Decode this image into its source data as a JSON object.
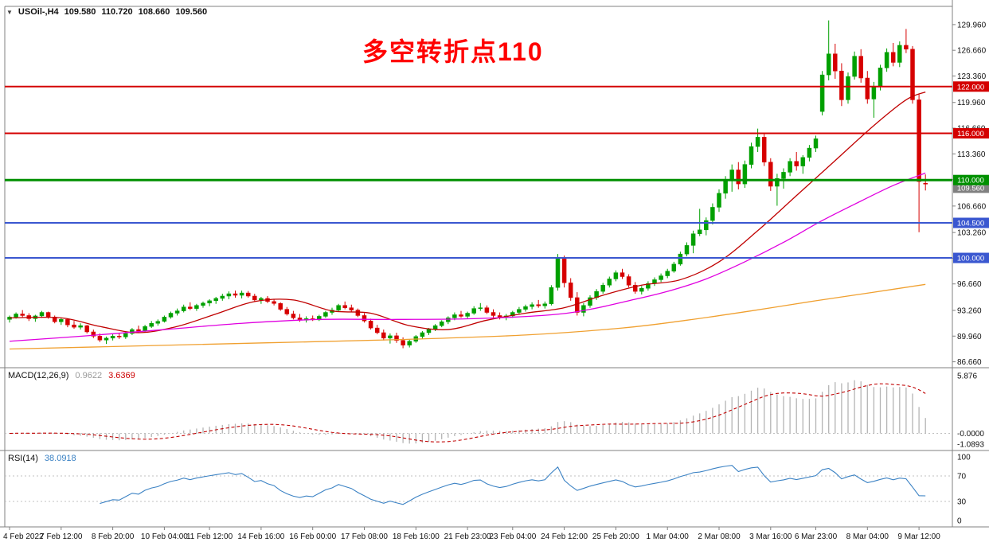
{
  "header": {
    "collapse_icon": "▼",
    "symbol": "USOil-,H4",
    "open": "109.580",
    "high": "110.720",
    "low": "108.660",
    "close": "109.560"
  },
  "annotation": {
    "text": "多空转折点110"
  },
  "colors": {
    "bull": "#00a000",
    "bear": "#d60000",
    "ma_fast": "#c00000",
    "ma_mid": "#e000e0",
    "ma_slow": "#f0a030",
    "macd_bar": "#b4b4b4",
    "macd_signal": "#c00000",
    "rsi_line": "#3b82c4",
    "level_red": "#d40000",
    "level_green": "#009000",
    "level_blue": "#3a57d0",
    "frame": "#808080",
    "text": "#111111",
    "badge_current": "#808080"
  },
  "main_chart": {
    "ylim": [
      85.9,
      132.3
    ],
    "price_ticks": [
      "129.960",
      "126.660",
      "123.360",
      "119.960",
      "116.660",
      "113.360",
      "110.060",
      "106.660",
      "103.260",
      "99.960",
      "96.660",
      "93.260",
      "89.960",
      "86.660"
    ],
    "hlines": [
      {
        "price": 122.0,
        "label": "122.000",
        "color_key": "level_red",
        "width": 2
      },
      {
        "price": 116.0,
        "label": "116.000",
        "color_key": "level_red",
        "width": 2
      },
      {
        "price": 110.0,
        "label": "110.000",
        "color_key": "level_green",
        "width": 3
      },
      {
        "price": 104.5,
        "label": "104.500",
        "color_key": "level_blue",
        "width": 2
      },
      {
        "price": 100.0,
        "label": "100.000",
        "color_key": "level_blue",
        "width": 2
      }
    ],
    "current_price": {
      "value": 109.56,
      "label": "109.560"
    }
  },
  "chart_data": {
    "type": "candlestick",
    "symbol": "USOil",
    "timeframe": "H4",
    "candles": [
      [
        92.1,
        92.6,
        91.7,
        92.4
      ],
      [
        92.4,
        93.0,
        92.2,
        92.8
      ],
      [
        92.8,
        93.3,
        92.4,
        92.6
      ],
      [
        92.6,
        92.9,
        91.9,
        92.2
      ],
      [
        92.2,
        92.7,
        91.8,
        92.55
      ],
      [
        92.55,
        93.2,
        92.3,
        93.0
      ],
      [
        93.0,
        93.1,
        92.2,
        92.4
      ],
      [
        92.4,
        92.6,
        91.6,
        91.8
      ],
      [
        91.8,
        92.3,
        91.4,
        92.1
      ],
      [
        92.1,
        92.2,
        91.1,
        91.4
      ],
      [
        91.4,
        91.9,
        90.9,
        91.1
      ],
      [
        91.1,
        91.6,
        90.8,
        91.3
      ],
      [
        91.3,
        91.4,
        90.3,
        90.5
      ],
      [
        90.5,
        90.8,
        89.7,
        89.95
      ],
      [
        89.95,
        90.3,
        89.2,
        89.45
      ],
      [
        89.45,
        89.9,
        88.95,
        89.7
      ],
      [
        89.7,
        90.2,
        89.4,
        89.95
      ],
      [
        89.95,
        90.4,
        89.6,
        89.85
      ],
      [
        89.85,
        90.5,
        89.6,
        90.3
      ],
      [
        90.3,
        91.0,
        90.1,
        90.8
      ],
      [
        90.8,
        91.3,
        90.4,
        90.6
      ],
      [
        90.6,
        91.4,
        90.5,
        91.2
      ],
      [
        91.2,
        91.9,
        91.0,
        91.6
      ],
      [
        91.6,
        92.1,
        91.3,
        91.85
      ],
      [
        91.85,
        92.6,
        91.7,
        92.4
      ],
      [
        92.4,
        93.1,
        92.2,
        92.9
      ],
      [
        92.9,
        93.5,
        92.6,
        93.2
      ],
      [
        93.2,
        94.0,
        93.0,
        93.7
      ],
      [
        93.7,
        94.3,
        93.3,
        93.5
      ],
      [
        93.5,
        94.1,
        93.2,
        93.9
      ],
      [
        93.9,
        94.4,
        93.6,
        94.2
      ],
      [
        94.2,
        94.7,
        93.8,
        94.5
      ],
      [
        94.5,
        95.0,
        94.1,
        94.8
      ],
      [
        94.8,
        95.4,
        94.5,
        95.1
      ],
      [
        95.1,
        95.7,
        94.7,
        95.4
      ],
      [
        95.4,
        95.8,
        94.9,
        95.2
      ],
      [
        95.2,
        95.8,
        94.8,
        95.5
      ],
      [
        95.5,
        95.75,
        94.9,
        95.1
      ],
      [
        95.1,
        95.4,
        94.4,
        94.6
      ],
      [
        94.6,
        95.0,
        94.1,
        94.8
      ],
      [
        94.8,
        95.1,
        94.2,
        94.4
      ],
      [
        94.4,
        94.7,
        93.9,
        94.15
      ],
      [
        94.15,
        94.3,
        93.2,
        93.4
      ],
      [
        93.4,
        93.7,
        92.6,
        92.8
      ],
      [
        92.8,
        93.2,
        92.1,
        92.3
      ],
      [
        92.3,
        92.8,
        91.8,
        92.0
      ],
      [
        92.0,
        92.5,
        91.7,
        92.2
      ],
      [
        92.2,
        92.6,
        91.9,
        92.05
      ],
      [
        92.05,
        92.7,
        91.9,
        92.5
      ],
      [
        92.5,
        93.2,
        92.3,
        93.0
      ],
      [
        93.0,
        93.6,
        92.7,
        93.3
      ],
      [
        93.3,
        94.1,
        93.1,
        93.9
      ],
      [
        93.9,
        94.4,
        93.4,
        93.6
      ],
      [
        93.6,
        94.0,
        93.1,
        93.3
      ],
      [
        93.3,
        93.5,
        92.4,
        92.6
      ],
      [
        92.6,
        92.9,
        91.7,
        91.9
      ],
      [
        91.9,
        92.2,
        90.8,
        91.0
      ],
      [
        91.0,
        91.4,
        90.2,
        90.4
      ],
      [
        90.4,
        90.8,
        89.4,
        89.7
      ],
      [
        89.7,
        90.3,
        89.0,
        90.0
      ],
      [
        90.0,
        90.4,
        89.1,
        89.4
      ],
      [
        89.4,
        89.8,
        88.4,
        88.8
      ],
      [
        88.8,
        89.5,
        88.5,
        89.3
      ],
      [
        89.3,
        90.1,
        89.1,
        89.9
      ],
      [
        89.9,
        90.6,
        89.6,
        90.4
      ],
      [
        90.4,
        91.0,
        90.1,
        90.85
      ],
      [
        90.85,
        91.5,
        90.6,
        91.3
      ],
      [
        91.3,
        92.0,
        91.1,
        91.8
      ],
      [
        91.8,
        92.5,
        91.5,
        92.3
      ],
      [
        92.3,
        93.0,
        92.0,
        92.7
      ],
      [
        92.7,
        93.2,
        92.3,
        92.5
      ],
      [
        92.5,
        93.1,
        92.2,
        92.9
      ],
      [
        92.9,
        93.8,
        92.7,
        93.5
      ],
      [
        93.5,
        94.2,
        93.2,
        93.6
      ],
      [
        93.6,
        93.9,
        92.8,
        93.0
      ],
      [
        93.0,
        93.4,
        92.3,
        92.6
      ],
      [
        92.6,
        93.0,
        92.1,
        92.35
      ],
      [
        92.35,
        92.8,
        92.0,
        92.55
      ],
      [
        92.55,
        93.2,
        92.3,
        93.0
      ],
      [
        93.0,
        93.7,
        92.8,
        93.4
      ],
      [
        93.4,
        94.0,
        93.1,
        93.75
      ],
      [
        93.75,
        94.3,
        93.4,
        94.0
      ],
      [
        94.0,
        94.6,
        93.6,
        93.85
      ],
      [
        93.85,
        94.4,
        93.5,
        94.1
      ],
      [
        94.1,
        96.5,
        93.9,
        96.2
      ],
      [
        96.2,
        100.5,
        95.8,
        99.9
      ],
      [
        99.9,
        100.3,
        96.2,
        96.8
      ],
      [
        96.8,
        97.4,
        94.5,
        94.9
      ],
      [
        94.9,
        95.6,
        92.6,
        93.0
      ],
      [
        93.0,
        94.2,
        92.5,
        93.9
      ],
      [
        93.9,
        95.2,
        93.6,
        94.9
      ],
      [
        94.9,
        96.0,
        94.6,
        95.7
      ],
      [
        95.7,
        96.8,
        95.4,
        96.5
      ],
      [
        96.5,
        97.6,
        96.2,
        97.3
      ],
      [
        97.3,
        98.4,
        97.0,
        98.1
      ],
      [
        98.1,
        98.6,
        97.3,
        97.6
      ],
      [
        97.6,
        97.9,
        96.2,
        96.5
      ],
      [
        96.5,
        96.9,
        95.4,
        95.7
      ],
      [
        95.7,
        96.4,
        95.3,
        96.1
      ],
      [
        96.1,
        97.0,
        95.8,
        96.7
      ],
      [
        96.7,
        97.5,
        96.4,
        97.2
      ],
      [
        97.2,
        98.0,
        96.9,
        97.7
      ],
      [
        97.7,
        98.6,
        97.4,
        98.3
      ],
      [
        98.3,
        99.5,
        98.1,
        99.2
      ],
      [
        99.2,
        100.8,
        99.0,
        100.5
      ],
      [
        100.5,
        102.0,
        100.2,
        101.6
      ],
      [
        101.6,
        103.5,
        100.6,
        103.1
      ],
      [
        103.1,
        106.3,
        102.8,
        103.6
      ],
      [
        103.6,
        105.2,
        102.9,
        104.8
      ],
      [
        104.8,
        107.0,
        104.3,
        106.5
      ],
      [
        106.5,
        108.8,
        105.9,
        108.3
      ],
      [
        108.3,
        110.5,
        107.6,
        109.9
      ],
      [
        109.9,
        112.0,
        108.5,
        111.3
      ],
      [
        111.3,
        112.3,
        108.8,
        109.5
      ],
      [
        109.5,
        112.5,
        109.0,
        112.0
      ],
      [
        112.0,
        114.8,
        111.5,
        114.3
      ],
      [
        114.3,
        116.6,
        113.6,
        115.5
      ],
      [
        115.5,
        116.0,
        111.8,
        112.3
      ],
      [
        112.3,
        112.8,
        108.6,
        109.2
      ],
      [
        109.2,
        110.8,
        106.7,
        110.2
      ],
      [
        110.2,
        111.5,
        108.9,
        111.0
      ],
      [
        111.0,
        112.8,
        110.5,
        112.4
      ],
      [
        112.4,
        113.6,
        111.2,
        111.8
      ],
      [
        111.8,
        113.2,
        110.8,
        112.9
      ],
      [
        112.9,
        114.5,
        112.4,
        114.1
      ],
      [
        114.1,
        115.7,
        113.6,
        115.3
      ],
      [
        118.8,
        124.0,
        118.3,
        123.5
      ],
      [
        123.5,
        130.5,
        122.8,
        126.2
      ],
      [
        126.2,
        127.5,
        123.0,
        124.0
      ],
      [
        124.0,
        125.0,
        119.5,
        120.3
      ],
      [
        120.3,
        123.8,
        119.8,
        123.3
      ],
      [
        123.3,
        126.5,
        122.9,
        125.9
      ],
      [
        125.9,
        126.8,
        122.5,
        123.1
      ],
      [
        123.1,
        124.0,
        119.8,
        120.4
      ],
      [
        120.4,
        122.6,
        118.0,
        122.0
      ],
      [
        122.0,
        124.8,
        121.5,
        124.4
      ],
      [
        124.4,
        126.9,
        123.9,
        126.4
      ],
      [
        126.4,
        127.6,
        124.6,
        125.1
      ],
      [
        125.1,
        127.8,
        124.5,
        127.3
      ],
      [
        127.3,
        129.4,
        126.3,
        126.8
      ],
      [
        126.8,
        127.2,
        119.8,
        120.3
      ],
      [
        120.3,
        121.0,
        103.3,
        109.8
      ],
      [
        109.58,
        110.72,
        108.66,
        109.56
      ]
    ],
    "ma_lines": [
      {
        "name": "fast",
        "color": "#c00000",
        "points": [
          [
            0,
            92.3
          ],
          [
            8,
            92.3
          ],
          [
            14,
            91.2
          ],
          [
            20,
            90.4
          ],
          [
            26,
            91.2
          ],
          [
            32,
            92.8
          ],
          [
            38,
            94.4
          ],
          [
            44,
            94.6
          ],
          [
            50,
            93.2
          ],
          [
            56,
            92.9
          ],
          [
            62,
            91.3
          ],
          [
            68,
            90.8
          ],
          [
            74,
            92.0
          ],
          [
            80,
            92.9
          ],
          [
            86,
            93.6
          ],
          [
            92,
            95.2
          ],
          [
            98,
            96.5
          ],
          [
            104,
            97.2
          ],
          [
            110,
            99.5
          ],
          [
            116,
            103.5
          ],
          [
            122,
            108.0
          ],
          [
            128,
            112.5
          ],
          [
            134,
            117.0
          ],
          [
            139,
            120.3
          ],
          [
            142,
            121.3
          ]
        ]
      },
      {
        "name": "mid",
        "color": "#e000e0",
        "points": [
          [
            0,
            89.3
          ],
          [
            12,
            90.0
          ],
          [
            24,
            90.8
          ],
          [
            36,
            91.6
          ],
          [
            48,
            92.1
          ],
          [
            60,
            92.1
          ],
          [
            72,
            92.2
          ],
          [
            84,
            92.7
          ],
          [
            90,
            93.4
          ],
          [
            96,
            94.5
          ],
          [
            102,
            95.7
          ],
          [
            108,
            97.3
          ],
          [
            114,
            99.5
          ],
          [
            120,
            102.0
          ],
          [
            126,
            104.8
          ],
          [
            132,
            107.3
          ],
          [
            137,
            109.3
          ],
          [
            142,
            110.9
          ]
        ]
      },
      {
        "name": "slow",
        "color": "#f0a030",
        "points": [
          [
            0,
            88.3
          ],
          [
            20,
            88.7
          ],
          [
            40,
            89.1
          ],
          [
            60,
            89.5
          ],
          [
            80,
            90.1
          ],
          [
            95,
            91.0
          ],
          [
            105,
            92.0
          ],
          [
            115,
            93.2
          ],
          [
            125,
            94.5
          ],
          [
            134,
            95.6
          ],
          [
            142,
            96.6
          ]
        ]
      }
    ],
    "time_labels": [
      {
        "i": 0,
        "t": "4 Feb 2022"
      },
      {
        "i": 8,
        "t": "7 Feb 12:00"
      },
      {
        "i": 16,
        "t": "8 Feb 20:00"
      },
      {
        "i": 24,
        "t": "10 Feb 04:00"
      },
      {
        "i": 31,
        "t": "11 Feb 12:00"
      },
      {
        "i": 39,
        "t": "14 Feb 16:00"
      },
      {
        "i": 47,
        "t": "16 Feb 00:00"
      },
      {
        "i": 55,
        "t": "17 Feb 08:00"
      },
      {
        "i": 63,
        "t": "18 Feb 16:00"
      },
      {
        "i": 71,
        "t": "21 Feb 23:00"
      },
      {
        "i": 78,
        "t": "23 Feb 04:00"
      },
      {
        "i": 86,
        "t": "24 Feb 12:00"
      },
      {
        "i": 94,
        "t": "25 Feb 20:00"
      },
      {
        "i": 102,
        "t": "1 Mar 04:00"
      },
      {
        "i": 110,
        "t": "2 Mar 08:00"
      },
      {
        "i": 118,
        "t": "3 Mar 16:00"
      },
      {
        "i": 125,
        "t": "6 Mar 23:00"
      },
      {
        "i": 133,
        "t": "8 Mar 04:00"
      },
      {
        "i": 141,
        "t": "9 Mar 12:00"
      }
    ],
    "macd": {
      "label": "MACD(12,26,9)",
      "value_main": "0.9622",
      "value_signal": "3.6369",
      "fast": 12,
      "slow": 26,
      "signal": 9,
      "scale_labels": [
        "5.876",
        "-0.0000",
        "-1.0893"
      ]
    },
    "rsi": {
      "label": "RSI(14)",
      "value": "38.0918",
      "period": 14,
      "levels": [
        70,
        30
      ],
      "scale_labels": [
        "100",
        "70",
        "30",
        "0"
      ]
    }
  }
}
